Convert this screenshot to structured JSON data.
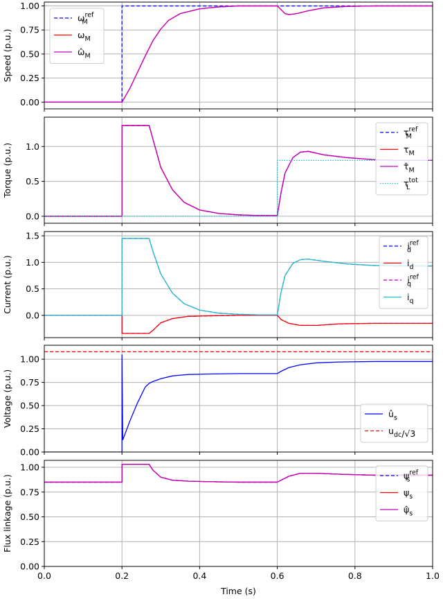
{
  "chart_data": [
    {
      "type": "line",
      "ylabel": "Speed (p.u.)",
      "xlim": [
        0,
        1
      ],
      "ylim": [
        -0.07,
        1.04
      ],
      "yticks": [
        "0.00",
        "0.25",
        "0.50",
        "0.75",
        "1.00"
      ],
      "ytick_values": [
        0,
        0.25,
        0.5,
        0.75,
        1.0
      ],
      "grid": true,
      "legend_position": "upper-left",
      "series": [
        {
          "name": "ω_M^ref",
          "color": "#0000ff",
          "dash": "dashed",
          "x": [
            0,
            0.2,
            0.2,
            1.0
          ],
          "y": [
            0,
            0,
            1.0,
            1.0
          ]
        },
        {
          "name": "ω_M",
          "color": "#ff0000",
          "dash": "solid",
          "x": [
            0,
            0.2,
            0.22,
            0.24,
            0.26,
            0.27,
            0.28,
            0.3,
            0.32,
            0.35,
            0.4,
            0.45,
            0.5,
            0.55,
            0.6,
            0.61,
            0.62,
            0.63,
            0.65,
            0.68,
            0.72,
            0.78,
            0.85,
            0.92,
            1.0
          ],
          "y": [
            0,
            0,
            0.14,
            0.31,
            0.48,
            0.56,
            0.64,
            0.76,
            0.85,
            0.92,
            0.97,
            0.99,
            1.0,
            1.0,
            1.0,
            0.96,
            0.92,
            0.91,
            0.92,
            0.95,
            0.98,
            0.995,
            1.0,
            1.0,
            1.0
          ]
        },
        {
          "name": "ω̂_M",
          "color": "#c000c0",
          "dash": "solid",
          "x": [
            0,
            0.2,
            0.22,
            0.24,
            0.26,
            0.27,
            0.28,
            0.3,
            0.32,
            0.35,
            0.4,
            0.45,
            0.5,
            0.55,
            0.6,
            0.61,
            0.62,
            0.63,
            0.65,
            0.68,
            0.72,
            0.78,
            0.85,
            0.92,
            1.0
          ],
          "y": [
            0,
            0,
            0.14,
            0.31,
            0.48,
            0.56,
            0.64,
            0.76,
            0.85,
            0.92,
            0.97,
            0.99,
            1.0,
            1.0,
            1.0,
            0.96,
            0.92,
            0.91,
            0.92,
            0.95,
            0.98,
            0.995,
            1.0,
            1.0,
            1.0
          ]
        }
      ]
    },
    {
      "type": "line",
      "ylabel": "Torque (p.u.)",
      "xlim": [
        0,
        1
      ],
      "ylim": [
        -0.1,
        1.42
      ],
      "yticks": [
        "0.0",
        "0.5",
        "1.0"
      ],
      "ytick_values": [
        0,
        0.5,
        1.0
      ],
      "grid": true,
      "legend_position": "upper-right",
      "series": [
        {
          "name": "τ_M^ref",
          "color": "#0000ff",
          "dash": "dashed",
          "x": [
            0,
            0.2,
            0.2,
            0.27,
            0.28,
            0.3,
            0.33,
            0.36,
            0.4,
            0.45,
            0.5,
            0.55,
            0.6,
            0.61,
            0.62,
            0.64,
            0.66,
            0.68,
            0.72,
            0.78,
            0.85,
            0.92,
            1.0
          ],
          "y": [
            0,
            0,
            1.3,
            1.3,
            1.1,
            0.7,
            0.38,
            0.2,
            0.09,
            0.04,
            0.02,
            0.01,
            0.01,
            0.35,
            0.62,
            0.84,
            0.92,
            0.93,
            0.88,
            0.84,
            0.81,
            0.8,
            0.8
          ]
        },
        {
          "name": "τ_M",
          "color": "#ff0000",
          "dash": "solid",
          "x": [
            0,
            0.2,
            0.2,
            0.27,
            0.28,
            0.3,
            0.33,
            0.36,
            0.4,
            0.45,
            0.5,
            0.55,
            0.6,
            0.61,
            0.62,
            0.64,
            0.66,
            0.68,
            0.72,
            0.78,
            0.85,
            0.92,
            1.0
          ],
          "y": [
            0,
            0,
            1.3,
            1.3,
            1.1,
            0.7,
            0.38,
            0.2,
            0.09,
            0.04,
            0.02,
            0.01,
            0.01,
            0.35,
            0.62,
            0.84,
            0.92,
            0.93,
            0.88,
            0.84,
            0.81,
            0.8,
            0.8
          ]
        },
        {
          "name": "τ̂_M",
          "color": "#c000c0",
          "dash": "solid",
          "x": [
            0,
            0.2,
            0.2,
            0.27,
            0.28,
            0.3,
            0.33,
            0.36,
            0.4,
            0.45,
            0.5,
            0.55,
            0.6,
            0.61,
            0.62,
            0.64,
            0.66,
            0.68,
            0.72,
            0.78,
            0.85,
            0.92,
            1.0
          ],
          "y": [
            0,
            0,
            1.3,
            1.3,
            1.1,
            0.7,
            0.38,
            0.2,
            0.09,
            0.04,
            0.02,
            0.01,
            0.01,
            0.35,
            0.62,
            0.84,
            0.92,
            0.93,
            0.88,
            0.84,
            0.81,
            0.8,
            0.8
          ]
        },
        {
          "name": "τ_L^tot",
          "color": "#17becf",
          "dash": "dotted",
          "x": [
            0,
            0.6,
            0.6,
            1.0
          ],
          "y": [
            0,
            0,
            0.8,
            0.8
          ]
        }
      ]
    },
    {
      "type": "line",
      "ylabel": "Current (p.u.)",
      "xlim": [
        0,
        1
      ],
      "ylim": [
        -0.42,
        1.58
      ],
      "yticks": [
        "0.0",
        "0.5",
        "1.0",
        "1.5"
      ],
      "ytick_values": [
        0,
        0.5,
        1.0,
        1.5
      ],
      "grid": true,
      "legend_position": "upper-right",
      "series": [
        {
          "name": "i_d^ref",
          "color": "#0000ff",
          "dash": "dashed",
          "x": [
            0,
            0.2,
            0.2,
            0.27,
            0.28,
            0.3,
            0.33,
            0.37,
            0.42,
            0.5,
            0.6,
            0.61,
            0.63,
            0.66,
            0.7,
            0.76,
            0.85,
            1.0
          ],
          "y": [
            0,
            0,
            -0.34,
            -0.34,
            -0.28,
            -0.14,
            -0.06,
            -0.02,
            -0.01,
            0,
            0,
            -0.08,
            -0.15,
            -0.19,
            -0.19,
            -0.16,
            -0.15,
            -0.15
          ]
        },
        {
          "name": "i_d",
          "color": "#ff0000",
          "dash": "solid",
          "x": [
            0,
            0.2,
            0.2,
            0.27,
            0.28,
            0.3,
            0.33,
            0.37,
            0.42,
            0.5,
            0.6,
            0.61,
            0.63,
            0.66,
            0.7,
            0.76,
            0.85,
            1.0
          ],
          "y": [
            0,
            0,
            -0.34,
            -0.34,
            -0.28,
            -0.14,
            -0.06,
            -0.02,
            -0.01,
            0,
            0,
            -0.08,
            -0.15,
            -0.19,
            -0.19,
            -0.16,
            -0.15,
            -0.15
          ]
        },
        {
          "name": "i_q^ref",
          "color": "#c000c0",
          "dash": "dashed",
          "x": [
            0,
            0.2,
            0.2,
            0.27,
            0.28,
            0.3,
            0.33,
            0.36,
            0.4,
            0.45,
            0.5,
            0.55,
            0.6,
            0.61,
            0.62,
            0.64,
            0.66,
            0.68,
            0.72,
            0.78,
            0.85,
            0.92,
            1.0
          ],
          "y": [
            0,
            0,
            1.45,
            1.45,
            1.2,
            0.78,
            0.42,
            0.22,
            0.1,
            0.04,
            0.02,
            0.01,
            0.01,
            0.45,
            0.75,
            0.98,
            1.05,
            1.06,
            1.02,
            0.97,
            0.94,
            0.93,
            0.93
          ]
        },
        {
          "name": "i_q",
          "color": "#17becf",
          "dash": "solid",
          "x": [
            0,
            0.2,
            0.2,
            0.27,
            0.28,
            0.3,
            0.33,
            0.36,
            0.4,
            0.45,
            0.5,
            0.55,
            0.6,
            0.61,
            0.62,
            0.64,
            0.66,
            0.68,
            0.72,
            0.78,
            0.85,
            0.92,
            1.0
          ],
          "y": [
            0,
            0,
            1.45,
            1.45,
            1.2,
            0.78,
            0.42,
            0.22,
            0.1,
            0.04,
            0.02,
            0.01,
            0.01,
            0.45,
            0.75,
            0.98,
            1.05,
            1.06,
            1.02,
            0.97,
            0.94,
            0.93,
            0.93
          ]
        }
      ]
    },
    {
      "type": "line",
      "ylabel": "Voltage (p.u.)",
      "xlim": [
        0,
        1
      ],
      "ylim": [
        0,
        1.15
      ],
      "yticks": [
        "0.00",
        "0.25",
        "0.50",
        "0.75",
        "1.00"
      ],
      "ytick_values": [
        0,
        0.25,
        0.5,
        0.75,
        1.0
      ],
      "grid": true,
      "legend_position": "lower-right",
      "series": [
        {
          "name": "û_s",
          "color": "#0000ff",
          "dash": "solid",
          "x": [
            0,
            0.2,
            0.2,
            0.202,
            0.22,
            0.24,
            0.26,
            0.27,
            0.28,
            0.3,
            0.33,
            0.37,
            0.42,
            0.5,
            0.6,
            0.61,
            0.63,
            0.66,
            0.7,
            0.76,
            0.85,
            1.0
          ],
          "y": [
            0,
            0,
            1.05,
            0.13,
            0.33,
            0.53,
            0.7,
            0.74,
            0.76,
            0.79,
            0.82,
            0.835,
            0.84,
            0.845,
            0.845,
            0.87,
            0.91,
            0.94,
            0.96,
            0.97,
            0.975,
            0.975
          ]
        },
        {
          "name": "u_dc/√3",
          "color": "#ff0000",
          "dash": "dashed",
          "x": [
            0,
            1.0
          ],
          "y": [
            1.08,
            1.08
          ]
        }
      ]
    },
    {
      "type": "line",
      "ylabel": "Flux linkage (p.u.)",
      "xlabel": "Time (s)",
      "xlim": [
        0,
        1
      ],
      "xticks": [
        "0.0",
        "0.2",
        "0.4",
        "0.6",
        "0.8",
        "1.0"
      ],
      "xtick_values": [
        0,
        0.2,
        0.4,
        0.6,
        0.8,
        1.0
      ],
      "ylim": [
        0,
        1.07
      ],
      "yticks": [
        "0.00",
        "0.25",
        "0.50",
        "0.75",
        "1.00"
      ],
      "ytick_values": [
        0,
        0.25,
        0.5,
        0.75,
        1.0
      ],
      "grid": true,
      "legend_position": "upper-right",
      "series": [
        {
          "name": "ψ_s^ref",
          "color": "#0000ff",
          "dash": "dashed",
          "x": [
            0,
            0.2,
            0.2,
            0.27,
            0.28,
            0.3,
            0.33,
            0.37,
            0.42,
            0.5,
            0.6,
            0.61,
            0.63,
            0.66,
            0.7,
            0.76,
            0.85,
            1.0
          ],
          "y": [
            0.85,
            0.85,
            1.03,
            1.03,
            0.97,
            0.9,
            0.87,
            0.86,
            0.855,
            0.85,
            0.85,
            0.87,
            0.91,
            0.94,
            0.94,
            0.93,
            0.92,
            0.92
          ]
        },
        {
          "name": "ψ_s",
          "color": "#ff0000",
          "dash": "solid",
          "x": [
            0,
            0.2,
            0.2,
            0.27,
            0.28,
            0.3,
            0.33,
            0.37,
            0.42,
            0.5,
            0.6,
            0.61,
            0.63,
            0.66,
            0.7,
            0.76,
            0.85,
            1.0
          ],
          "y": [
            0.85,
            0.85,
            1.03,
            1.03,
            0.97,
            0.9,
            0.87,
            0.86,
            0.855,
            0.85,
            0.85,
            0.87,
            0.91,
            0.94,
            0.94,
            0.93,
            0.92,
            0.92
          ]
        },
        {
          "name": "ψ̂_s",
          "color": "#c000c0",
          "dash": "solid",
          "x": [
            0,
            0.2,
            0.2,
            0.27,
            0.28,
            0.3,
            0.33,
            0.37,
            0.42,
            0.5,
            0.6,
            0.61,
            0.63,
            0.66,
            0.7,
            0.76,
            0.85,
            1.0
          ],
          "y": [
            0.85,
            0.85,
            1.03,
            1.03,
            0.97,
            0.9,
            0.87,
            0.86,
            0.855,
            0.85,
            0.85,
            0.87,
            0.91,
            0.94,
            0.94,
            0.93,
            0.92,
            0.92
          ]
        }
      ]
    }
  ]
}
